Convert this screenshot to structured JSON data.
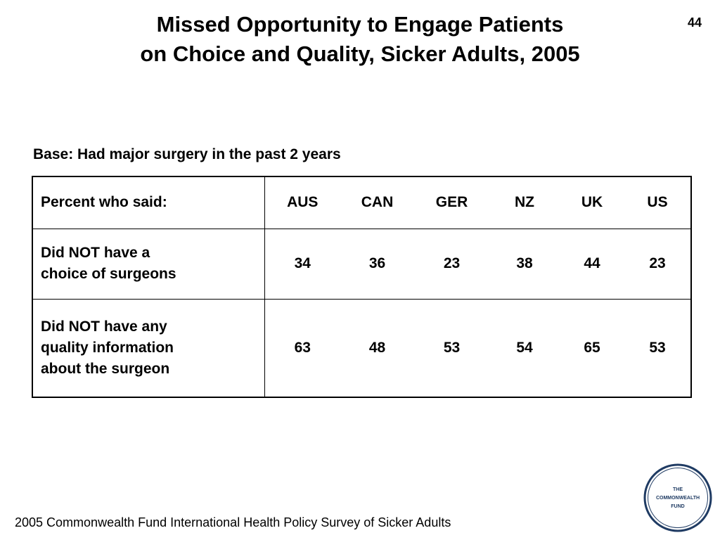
{
  "slide": {
    "title_line1": "Missed Opportunity to Engage Patients",
    "title_line2": "on Choice and Quality, Sicker Adults, 2005",
    "number": "44",
    "base_note": "Base: Had major surgery in the past 2 years",
    "footer": "2005 Commonwealth Fund International Health Policy Survey of Sicker Adults",
    "logo_text": [
      "THE",
      "COMMONWEALTH",
      "FUND"
    ]
  },
  "chart_data": {
    "type": "table",
    "header_label": "Percent who said:",
    "columns": [
      "AUS",
      "CAN",
      "GER",
      "NZ",
      "UK",
      "US"
    ],
    "rows": [
      {
        "label_lines": [
          "Did NOT have a",
          "choice of surgeons"
        ],
        "values": [
          34,
          36,
          23,
          38,
          44,
          23
        ]
      },
      {
        "label_lines": [
          "Did NOT have any",
          "quality information",
          "about the surgeon"
        ],
        "values": [
          63,
          48,
          53,
          54,
          65,
          53
        ]
      }
    ]
  },
  "colors": {
    "text": "#000000",
    "border": "#000000",
    "logo_ring": "#1f3b63"
  }
}
